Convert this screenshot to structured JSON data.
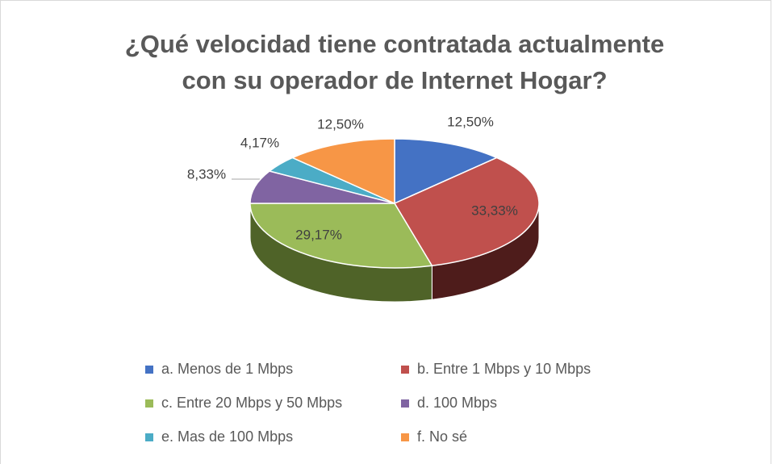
{
  "chart_data": {
    "type": "pie",
    "title": [
      "¿Qué velocidad tiene contratada actualmente",
      "con su operador de Internet Hogar?"
    ],
    "categories": [
      "a. Menos de 1 Mbps",
      "b. Entre 1 Mbps y 10 Mbps",
      "c. Entre 20 Mbps y 50 Mbps",
      "d. 100 Mbps",
      "e. Mas de 100 Mbps",
      "f. No sé"
    ],
    "values": [
      12.5,
      33.33,
      29.17,
      8.33,
      4.17,
      12.5
    ],
    "value_labels": [
      "12,50%",
      "33,33%",
      "29,17%",
      "8,33%",
      "4,17%",
      "12,50%"
    ],
    "colors": [
      "#4472c4",
      "#c0504d",
      "#9bbb59",
      "#8064a2",
      "#4bacc6",
      "#f79646"
    ],
    "side_colors": [
      "#2c4a80",
      "#4e1c1b",
      "#4f6328",
      "#4a3862",
      "#2a6c7e",
      "#a8601f"
    ],
    "legend": "bottom"
  }
}
